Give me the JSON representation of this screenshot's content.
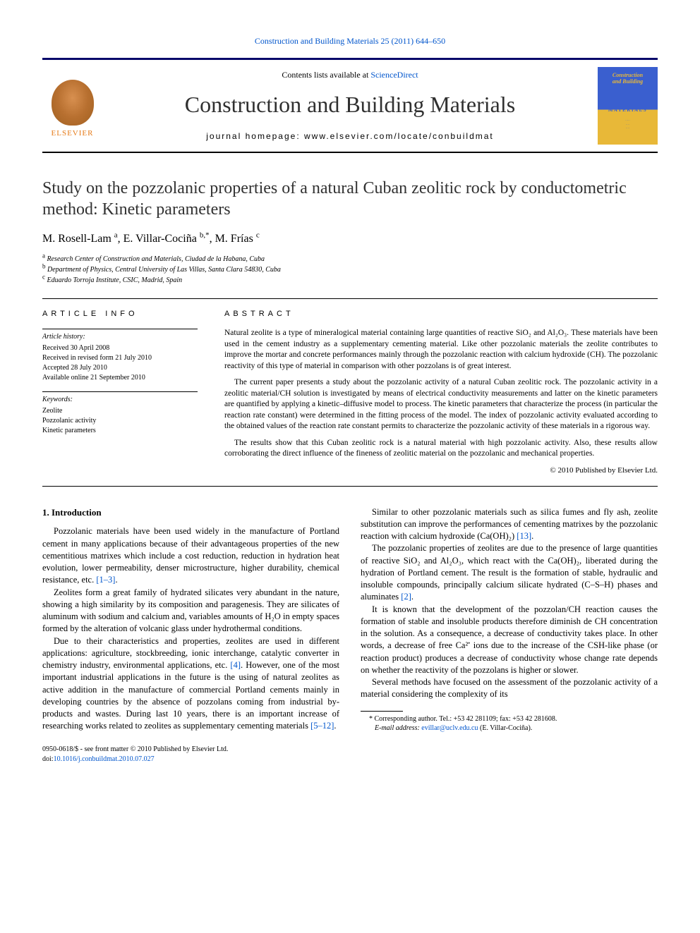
{
  "header": {
    "journal_citation_link": "Construction and Building Materials 25 (2011) 644–650",
    "contents_prefix": "Contents lists available at ",
    "contents_link": "ScienceDirect",
    "journal_name": "Construction and Building Materials",
    "homepage_label": "journal homepage: www.elsevier.com/locate/conbuildmat",
    "publisher_name": "ELSEVIER",
    "cover_line1": "Construction",
    "cover_line2": "and Building",
    "cover_sub": "MATERIALS"
  },
  "article": {
    "title": "Study on the pozzolanic properties of a natural Cuban zeolitic rock by conductometric method: Kinetic parameters",
    "authors_html": "M. Rosell-Lam <sup>a</sup>, E. Villar-Cociña <sup>b,*</sup>, M. Frías <sup>c</sup>",
    "affiliations": [
      {
        "sup": "a",
        "text": "Research Center of Construction and Materials, Ciudad de la Habana, Cuba"
      },
      {
        "sup": "b",
        "text": "Department of Physics, Central University of Las Villas, Santa Clara 54830, Cuba"
      },
      {
        "sup": "c",
        "text": "Eduardo Torroja Institute, CSIC, Madrid, Spain"
      }
    ]
  },
  "info": {
    "info_heading": "ARTICLE INFO",
    "history_heading": "Article history:",
    "history": [
      "Received 30 April 2008",
      "Received in revised form 21 July 2010",
      "Accepted 28 July 2010",
      "Available online 21 September 2010"
    ],
    "keywords_heading": "Keywords:",
    "keywords": [
      "Zeolite",
      "Pozzolanic activity",
      "Kinetic parameters"
    ]
  },
  "abstract": {
    "heading": "ABSTRACT",
    "paragraphs": [
      "Natural zeolite is a type of mineralogical material containing large quantities of reactive SiO₂ and Al₂O₃. These materials have been used in the cement industry as a supplementary cementing material. Like other pozzolanic materials the zeolite contributes to improve the mortar and concrete performances mainly through the pozzolanic reaction with calcium hydroxide (CH). The pozzolanic reactivity of this type of material in comparison with other pozzolans is of great interest.",
      "The current paper presents a study about the pozzolanic activity of a natural Cuban zeolitic rock. The pozzolanic activity in a zeolitic material/CH solution is investigated by means of electrical conductivity measurements and latter on the kinetic parameters are quantified by applying a kinetic–diffusive model to process. The kinetic parameters that characterize the process (in particular the reaction rate constant) were determined in the fitting process of the model. The index of pozzolanic activity evaluated according to the obtained values of the reaction rate constant permits to characterize the pozzolanic activity of these materials in a rigorous way.",
      "The results show that this Cuban zeolitic rock is a natural material with high pozzolanic activity. Also, these results allow corroborating the direct influence of the fineness of zeolitic material on the pozzolanic and mechanical properties."
    ],
    "copyright": "© 2010 Published by Elsevier Ltd."
  },
  "body": {
    "section_heading": "1. Introduction",
    "paragraphs": [
      "Pozzolanic materials have been used widely in the manufacture of Portland cement in many applications because of their advantageous properties of the new cementitious matrixes which include a cost reduction, reduction in hydration heat evolution, lower permeability, denser microstructure, higher durability, chemical resistance, etc. <a href='#' data-name='ref-link-1-3' data-interactable='true'>[1–3]</a>.",
      "Zeolites form a great family of hydrated silicates very abundant in the nature, showing a high similarity by its composition and paragenesis. They are silicates of aluminum with sodium and calcium and, variables amounts of H₂O in empty spaces formed by the alteration of volcanic glass under hydrothermal conditions.",
      "Due to their characteristics and properties, zeolites are used in different applications: agriculture, stockbreeding, ionic interchange, catalytic converter in chemistry industry, environmental applications, etc. <a href='#' data-name='ref-link-4' data-interactable='true'>[4]</a>. However, one of the most important industrial applications in the future is the using of natural zeolites as active addition in the manufacture of commercial Portland cements mainly in developing countries by the absence of pozzolans coming from industrial by-products and wastes. During last 10 years, there is an important increase of researching works related to zeolites as supplementary cementing materials <a href='#' data-name='ref-link-5-12' data-interactable='true'>[5–12]</a>.",
      "Similar to other pozzolanic materials such as silica fumes and fly ash, zeolite substitution can improve the performances of cementing matrixes by the pozzolanic reaction with calcium hydroxide (Ca(OH)₂) <a href='#' data-name='ref-link-13' data-interactable='true'>[13]</a>.",
      "The pozzolanic properties of zeolites are due to the presence of large quantities of reactive SiO₂ and Al₂O₃, which react with the Ca(OH)₂, liberated during the hydration of Portland cement. The result is the formation of stable, hydraulic and insoluble compounds, principally calcium silicate hydrated (C–S–H) phases and aluminates <a href='#' data-name='ref-link-2' data-interactable='true'>[2]</a>.",
      "It is known that the development of the pozzolan/CH reaction causes the formation of stable and insoluble products therefore diminish de CH concentration in the solution. As a consequence, a decrease of conductivity takes place. In other words, a decrease of free Ca²⁺ ions due to the increase of the CSH-like phase (or reaction product) produces a decrease of conductivity whose change rate depends on whether the reactivity of the pozzolans is higher or slower.",
      "Several methods have focused on the assessment of the pozzolanic activity of a material considering the complexity of its"
    ]
  },
  "footnotes": {
    "corresponding": "* Corresponding author. Tel.: +53 42 281109; fax: +53 42 281608.",
    "email_label": "E-mail address:",
    "email": "evillar@uclv.edu.cu",
    "email_suffix": "(E. Villar-Cociña)."
  },
  "footer": {
    "issn": "0950-0618/$ - see front matter © 2010 Published by Elsevier Ltd.",
    "doi_label": "doi:",
    "doi": "10.1016/j.conbuildmat.2010.07.027"
  },
  "style": {
    "link_color": "#0055cc",
    "border_color_top": "#0a0a6a",
    "cover_blue": "#3a5fcf",
    "cover_yellow": "#e8b838",
    "publisher_orange": "#e67a17"
  }
}
